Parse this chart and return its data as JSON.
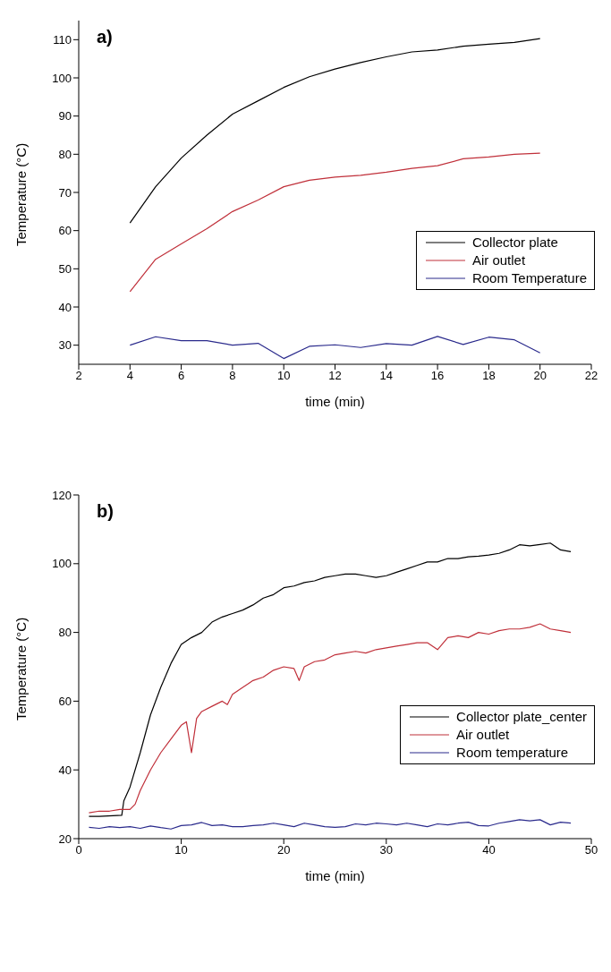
{
  "chart_data": [
    {
      "type": "line",
      "title": "a)",
      "xlabel": "time (min)",
      "ylabel": "Temperature (°C)",
      "xlim": [
        2,
        22
      ],
      "xticks": [
        2,
        4,
        6,
        8,
        10,
        12,
        14,
        16,
        18,
        20,
        22
      ],
      "ylim": [
        25,
        115
      ],
      "yticks": [
        30,
        40,
        50,
        60,
        70,
        80,
        90,
        100,
        110
      ],
      "grid": false,
      "legend": "right",
      "marker": "none",
      "line_style": "solid",
      "x": [
        4,
        5,
        6,
        7,
        8,
        9,
        10,
        11,
        12,
        13,
        14,
        15,
        16,
        17,
        18,
        19,
        20
      ],
      "series": [
        {
          "name": "Collector plate",
          "color": "#000000",
          "values": [
            62,
            71.5,
            79,
            85,
            90.5,
            94,
            97.5,
            100.3,
            102.3,
            104,
            105.5,
            106.8,
            107.3,
            108.3,
            108.8,
            109.3,
            110.3
          ]
        },
        {
          "name": "Air outlet",
          "color": "#c0303a",
          "values": [
            44,
            52.5,
            56.5,
            60.5,
            65,
            68,
            71.5,
            73.2,
            74,
            74.5,
            75.3,
            76.3,
            77,
            78.8,
            79.3,
            80,
            80.3
          ]
        },
        {
          "name": "Room Temperature",
          "color": "#2a2a8c",
          "values": [
            30,
            32.2,
            31.2,
            31.2,
            30,
            30.5,
            26.5,
            29.7,
            30.1,
            29.4,
            30.4,
            30,
            32.3,
            30.2,
            32.1,
            31.4,
            28
          ]
        }
      ]
    },
    {
      "type": "line",
      "title": "b)",
      "xlabel": "time (min)",
      "ylabel": "Temperature (°C)",
      "xlim": [
        0,
        50
      ],
      "xticks": [
        0,
        10,
        20,
        30,
        40,
        50
      ],
      "ylim": [
        20,
        120
      ],
      "yticks": [
        20,
        40,
        60,
        80,
        100,
        120
      ],
      "grid": false,
      "legend": "right",
      "marker": "none",
      "line_style": "solid",
      "series": [
        {
          "name": "Collector plate_center",
          "color": "#000000",
          "x": [
            1,
            2,
            4.2,
            4.4,
            5,
            6,
            7,
            8,
            9,
            10,
            11,
            12,
            13,
            14,
            15,
            16,
            17,
            18,
            19,
            20,
            21,
            22,
            23,
            24,
            25,
            26,
            27,
            28,
            29,
            30,
            31,
            32,
            33,
            34,
            35,
            36,
            37,
            38,
            39,
            40,
            41,
            42,
            43,
            44,
            45,
            46,
            47,
            48
          ],
          "values": [
            26.5,
            26.5,
            26.8,
            31,
            35,
            45,
            56,
            64,
            71,
            76.5,
            78.5,
            80,
            83,
            84.5,
            85.5,
            86.5,
            88,
            90,
            91,
            93,
            93.5,
            94.5,
            95,
            96,
            96.5,
            97,
            97,
            96.5,
            96,
            96.5,
            97.5,
            98.5,
            99.5,
            100.5,
            100.5,
            101.5,
            101.5,
            102,
            102.2,
            102.5,
            103,
            104,
            105.5,
            105.2,
            105.6,
            106,
            104,
            103.5
          ]
        },
        {
          "name": "Air outlet",
          "color": "#c0303a",
          "x": [
            1,
            2,
            3,
            4,
            5,
            5.5,
            6,
            7,
            8,
            9,
            10,
            10.5,
            11,
            11.5,
            12,
            13,
            14,
            14.5,
            15,
            16,
            17,
            18,
            19,
            20,
            21,
            21.5,
            22,
            23,
            24,
            25,
            26,
            27,
            28,
            29,
            30,
            31,
            32,
            33,
            34,
            35,
            36,
            37,
            38,
            39,
            40,
            41,
            42,
            43,
            44,
            45,
            46,
            47,
            48
          ],
          "values": [
            27.5,
            28,
            28,
            28.5,
            28.5,
            30,
            34,
            40,
            45,
            49,
            53,
            54,
            45,
            55,
            57,
            58.5,
            60,
            59,
            62,
            64,
            66,
            67,
            69,
            70,
            69.5,
            66,
            70,
            71.5,
            72,
            73.5,
            74,
            74.5,
            74,
            75,
            75.5,
            76,
            76.5,
            77,
            77,
            75,
            78.5,
            79,
            78.5,
            80,
            79.5,
            80.5,
            81,
            81,
            81.5,
            82.5,
            81,
            80.5,
            80
          ]
        },
        {
          "name": "Room temperature",
          "color": "#2a2a8c",
          "x": [
            1,
            2,
            3,
            4,
            5,
            6,
            7,
            8,
            9,
            10,
            11,
            12,
            13,
            14,
            15,
            16,
            17,
            18,
            19,
            20,
            21,
            22,
            23,
            24,
            25,
            26,
            27,
            28,
            29,
            30,
            31,
            32,
            33,
            34,
            35,
            36,
            37,
            38,
            39,
            40,
            41,
            42,
            43,
            44,
            45,
            46,
            47,
            48
          ],
          "values": [
            23.3,
            23,
            23.5,
            23.2,
            23.5,
            23,
            23.7,
            23.2,
            22.8,
            23.8,
            24,
            24.7,
            23.8,
            24,
            23.5,
            23.5,
            23.8,
            24,
            24.5,
            24,
            23.5,
            24.5,
            24,
            23.5,
            23.3,
            23.5,
            24.3,
            24,
            24.5,
            24.3,
            24,
            24.5,
            24,
            23.5,
            24.3,
            24,
            24.5,
            24.8,
            23.8,
            23.7,
            24.5,
            25,
            25.5,
            25.2,
            25.5,
            24,
            24.8,
            24.5
          ]
        }
      ]
    }
  ]
}
